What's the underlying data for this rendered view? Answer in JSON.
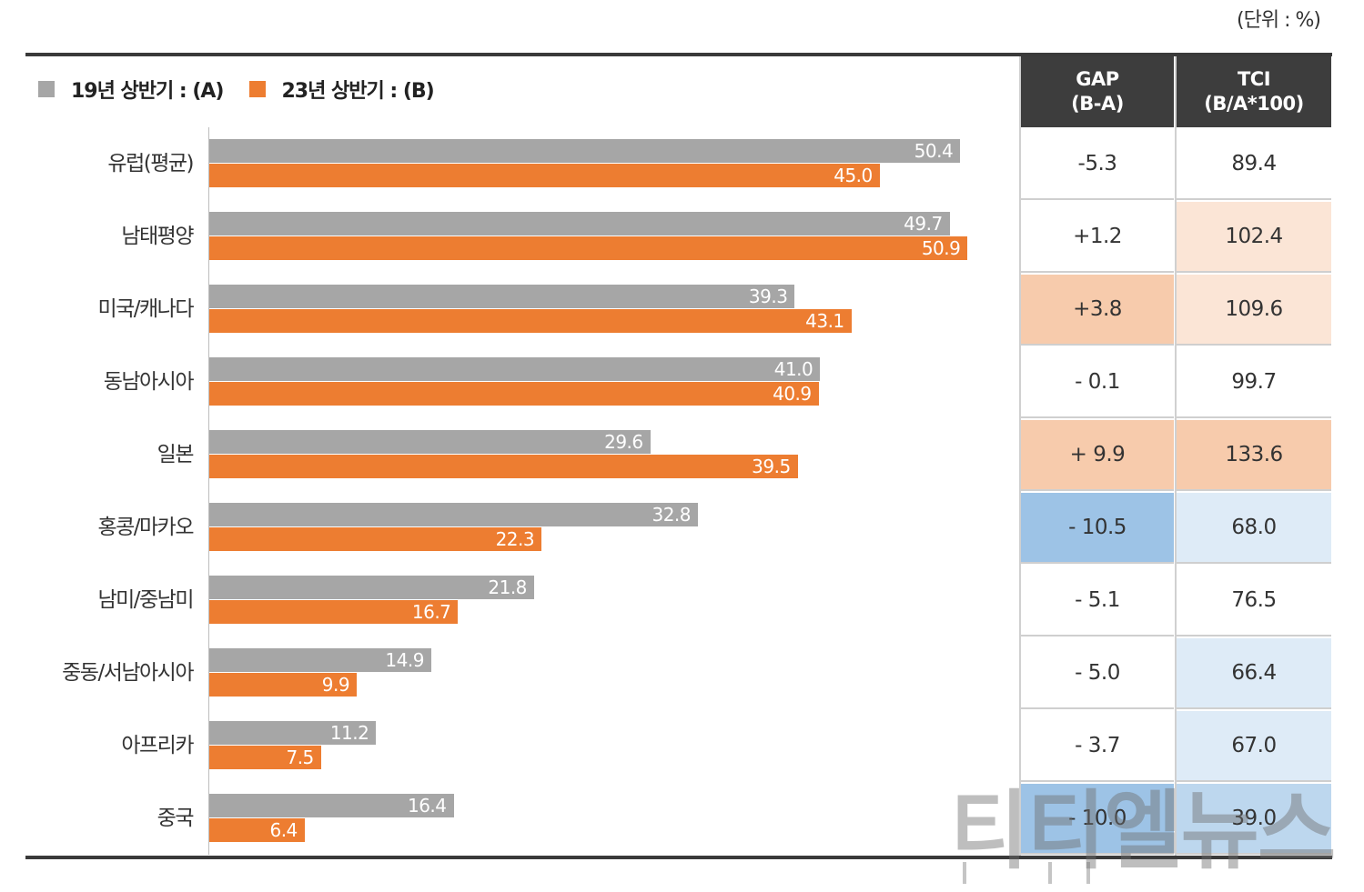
{
  "unit_note": "(단위 : %)",
  "legend": {
    "a_label": "19년 상반기 : (A)",
    "b_label": "23년 상반기 : (B)",
    "a_color": "#a6a6a6",
    "b_color": "#ed7d31"
  },
  "table": {
    "gap_header_line1": "GAP",
    "gap_header_line2": "(B-A)",
    "tci_header_line1": "TCI",
    "tci_header_line2": "(B/A*100)",
    "header_color": "#3d3d3d"
  },
  "chart_data": {
    "type": "bar",
    "orientation": "horizontal",
    "categories": [
      "유럽(평균)",
      "남태평양",
      "미국/캐나다",
      "동남아시아",
      "일본",
      "홍콩/마카오",
      "남미/중남미",
      "중동/서남아시아",
      "아프리카",
      "중국"
    ],
    "series": [
      {
        "name": "19년 상반기 : (A)",
        "color": "#a6a6a6",
        "values": [
          50.4,
          49.7,
          39.3,
          41.0,
          29.6,
          32.8,
          21.8,
          14.9,
          11.2,
          16.4
        ]
      },
      {
        "name": "23년 상반기 : (B)",
        "color": "#ed7d31",
        "values": [
          45.0,
          50.9,
          43.1,
          40.9,
          39.5,
          22.3,
          16.7,
          9.9,
          7.5,
          6.4
        ]
      }
    ],
    "value_labels": {
      "a": [
        "50.4",
        "49.7",
        "39.3",
        "41.0",
        "29.6",
        "32.8",
        "21.8",
        "14.9",
        "11.2",
        "16.4"
      ],
      "b": [
        "45.0",
        "50.9",
        "43.1",
        "40.9",
        "39.5",
        "22.3",
        "16.7",
        "9.9",
        "7.5",
        "6.4"
      ]
    },
    "gap_values": [
      "-5.3",
      "+1.2",
      "+3.8",
      "- 0.1",
      "+ 9.9",
      "- 10.5",
      "- 5.1",
      "- 5.0",
      "- 3.7",
      "- 10.0"
    ],
    "tci_values": [
      "89.4",
      "102.4",
      "109.6",
      "99.7",
      "133.6",
      "68.0",
      "76.5",
      "66.4",
      "67.0",
      "39.0"
    ],
    "gap_colors": [
      "#ffffff",
      "#ffffff",
      "#f7cbac",
      "#ffffff",
      "#f7cbac",
      "#9dc3e6",
      "#ffffff",
      "#ffffff",
      "#ffffff",
      "#9dc3e6"
    ],
    "tci_colors": [
      "#ffffff",
      "#fbe5d6",
      "#fbe5d6",
      "#ffffff",
      "#f7cbac",
      "#deebf7",
      "#ffffff",
      "#deebf7",
      "#deebf7",
      "#bdd7ee"
    ],
    "xlim": [
      0,
      52
    ],
    "grid": false,
    "legend_position": "top-left"
  },
  "watermark": "티티엘뉴스"
}
